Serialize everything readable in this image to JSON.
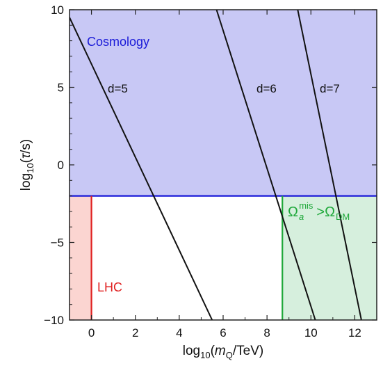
{
  "chart_data": {
    "type": "line",
    "title": "",
    "xlabel": {
      "prefix": "log",
      "sub": "10",
      "open": "(",
      "italic": "m",
      "italic_sub": "Q",
      "rest": "/TeV)"
    },
    "ylabel": {
      "prefix": "log",
      "sub": "10",
      "open": "(",
      "italic": "τ",
      "rest": "/s)"
    },
    "xlim": [
      -1,
      13
    ],
    "ylim": [
      -10,
      10
    ],
    "x_ticks": [
      {
        "value": 0,
        "label": "0"
      },
      {
        "value": 2,
        "label": "2"
      },
      {
        "value": 4,
        "label": "4"
      },
      {
        "value": 6,
        "label": "6"
      },
      {
        "value": 8,
        "label": "8"
      },
      {
        "value": 10,
        "label": "10"
      },
      {
        "value": 12,
        "label": "12"
      }
    ],
    "y_ticks": [
      {
        "value": -10,
        "label": "−10"
      },
      {
        "value": -5,
        "label": "−5"
      },
      {
        "value": 0,
        "label": "0"
      },
      {
        "value": 5,
        "label": "5"
      },
      {
        "value": 10,
        "label": "10"
      }
    ],
    "grid": false,
    "series": [
      {
        "name": "d=5",
        "x": [
          -1,
          5.5
        ],
        "y": [
          9.5,
          -10
        ],
        "color": "#111111"
      },
      {
        "name": "d=6",
        "x": [
          5.7,
          10.2
        ],
        "y": [
          10,
          -10
        ],
        "color": "#111111"
      },
      {
        "name": "d=7",
        "x": [
          9.4,
          12.3
        ],
        "y": [
          10,
          -10
        ],
        "color": "#111111"
      }
    ],
    "regions": [
      {
        "name": "cosmology",
        "label": "Cosmology",
        "x_range": [
          -1,
          13
        ],
        "y_range": [
          -2,
          10
        ],
        "fill": "#c8c8f5",
        "edge": "#1a1ad8"
      },
      {
        "name": "lhc",
        "label": "LHC",
        "x_range": [
          -1,
          0
        ],
        "y_range": [
          -10,
          -2
        ],
        "fill": "#fbd5d1",
        "edge": "#e02020"
      },
      {
        "name": "misalignment",
        "x_range": [
          8.7,
          13
        ],
        "y_range": [
          -10,
          -2
        ],
        "fill": "#d6efdd",
        "edge": "#1fa83a"
      }
    ],
    "annotations": {
      "misalignment": {
        "omega1": "Ω",
        "sub1": "a",
        "sup1": "mis",
        "gt": ">",
        "omega2": "Ω",
        "sub2": "DM"
      }
    }
  },
  "colors": {
    "cosmology_text": "#1a1ad8",
    "lhc_text": "#e02020",
    "misalignment_text": "#1fa83a"
  }
}
